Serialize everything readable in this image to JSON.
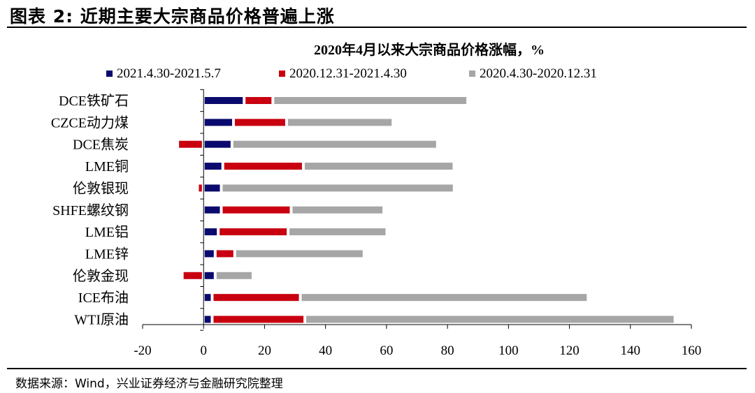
{
  "figure": {
    "title": "图表 2: 近期主要大宗商品价格普遍上涨",
    "source": "数据来源：Wind，兴业证券经济与金融研究院整理"
  },
  "chart_data": {
    "type": "bar",
    "orientation": "horizontal",
    "stacking": "segments side by side along value axis",
    "title": "2020年4月以来大宗商品价格涨幅，%",
    "xlabel": "",
    "ylabel": "",
    "xlim": [
      -20,
      160
    ],
    "xticks": [
      "-20",
      "0",
      "20",
      "40",
      "60",
      "80",
      "100",
      "120",
      "140",
      "160"
    ],
    "grid": false,
    "legend_position": "top",
    "categories": [
      "DCE铁矿石",
      "CZCE动力煤",
      "DCE焦炭",
      "LME铜",
      "伦敦银现",
      "SHFE螺纹钢",
      "LME铝",
      "LME锌",
      "伦敦金现",
      "ICE布油",
      "WTI原油"
    ],
    "series": [
      {
        "name": "2021.4.30-2021.5.7",
        "color": "#0a0a6e",
        "values": [
          12.5,
          9.0,
          8.5,
          5.5,
          5.0,
          5.0,
          4.0,
          3.0,
          3.0,
          2.0,
          2.0
        ]
      },
      {
        "name": "2020.12.31-2021.4.30",
        "color": "#c8000f",
        "values": [
          8.5,
          16.5,
          -7.5,
          25.5,
          -1.0,
          22.0,
          22.0,
          5.5,
          -6.0,
          28.0,
          29.5
        ]
      },
      {
        "name": "2020.4.30-2020.12.31",
        "color": "#a6a6a6",
        "values": [
          63.0,
          34.0,
          66.5,
          48.5,
          75.5,
          29.5,
          31.5,
          41.5,
          11.5,
          93.5,
          120.5
        ]
      }
    ]
  }
}
